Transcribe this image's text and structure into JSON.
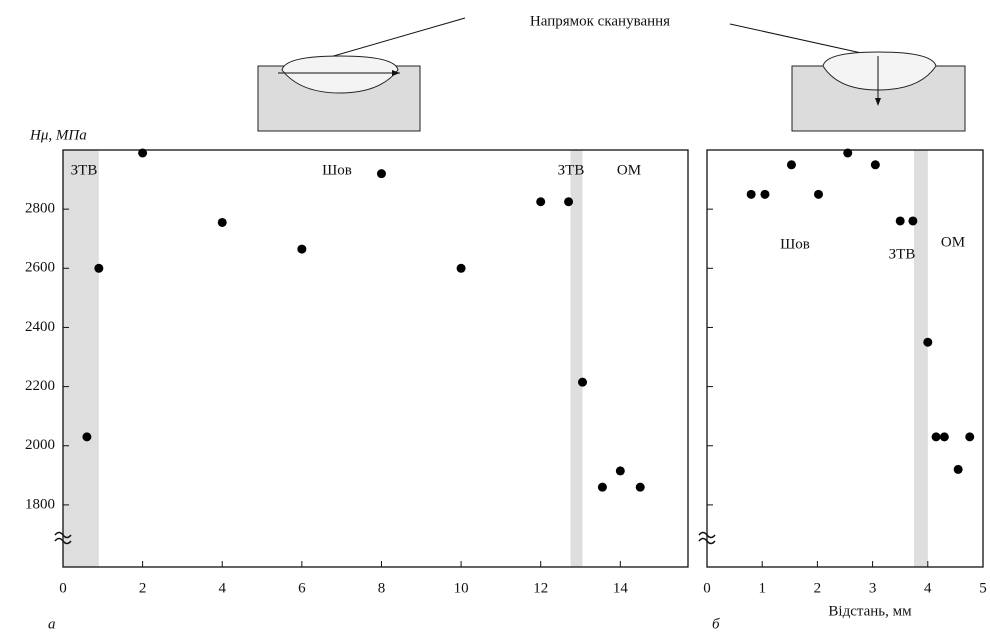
{
  "header": {
    "title": "Напрямок сканування"
  },
  "chart_data": [
    {
      "type": "scatter",
      "caption": "а",
      "y_label": "Hμ, МПа",
      "xlim": [
        0,
        15.7
      ],
      "xticks": [
        0,
        2,
        4,
        6,
        8,
        10,
        12,
        14
      ],
      "ylim": [
        1590,
        3000
      ],
      "yticks": [
        1800,
        2000,
        2200,
        2400,
        2600,
        2800
      ],
      "bands": [
        [
          0,
          0.9
        ],
        [
          12.75,
          13.05
        ]
      ],
      "band_color": "#dedede",
      "annotations": [
        "ЗТВ",
        "Шов",
        "ЗТВ",
        "ОМ"
      ],
      "series": [
        {
          "color": "#000000",
          "x": [
            0.6,
            0.9,
            2,
            4,
            6,
            8,
            10,
            12,
            12.7,
            13.05,
            13.55,
            14,
            14.5
          ],
          "values": [
            2030,
            2600,
            2990,
            2755,
            2665,
            2920,
            2600,
            2825,
            2825,
            2215,
            1860,
            1915,
            1860
          ]
        }
      ]
    },
    {
      "type": "scatter",
      "caption": "б",
      "x_label": "Відстань, мм",
      "xlim": [
        0,
        5
      ],
      "xticks": [
        0,
        1,
        2,
        3,
        4,
        5
      ],
      "ylim": [
        1590,
        3000
      ],
      "yticks": [
        1800,
        2000,
        2200,
        2400,
        2600,
        2800
      ],
      "bands": [
        [
          3.75,
          4.0
        ]
      ],
      "band_color": "#dedede",
      "annotations": [
        "Шов",
        "ЗТВ",
        "ОМ"
      ],
      "series": [
        {
          "color": "#000000",
          "x": [
            0.8,
            1.05,
            1.53,
            2.02,
            2.55,
            3.05,
            3.5,
            3.73,
            4.0,
            4.15,
            4.3,
            4.55,
            4.76
          ],
          "values": [
            2850,
            2850,
            2950,
            2850,
            2990,
            2950,
            2760,
            2760,
            2350,
            2030,
            2030,
            1920,
            2030
          ]
        }
      ]
    }
  ]
}
